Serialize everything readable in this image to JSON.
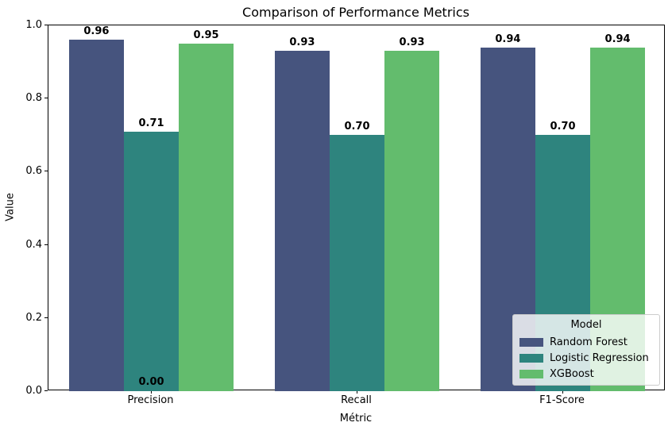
{
  "chart_data": {
    "type": "bar",
    "title": "Comparison of Performance Metrics",
    "xlabel": "Métric",
    "ylabel": "Value",
    "categories": [
      "Precision",
      "Recall",
      "F1-Score"
    ],
    "series": [
      {
        "name": "Random Forest",
        "color": "#46547e",
        "values": [
          0.96,
          0.93,
          0.94
        ]
      },
      {
        "name": "Logistic Regression",
        "color": "#2e847e",
        "values": [
          0.71,
          0.7,
          0.7
        ]
      },
      {
        "name": "XGBoost",
        "color": "#63bc6d",
        "values": [
          0.95,
          0.93,
          0.94
        ]
      }
    ],
    "extra_annotations": [
      {
        "text": "0.00",
        "category": "Precision",
        "y": 0.0
      }
    ],
    "ylim": [
      0.0,
      1.0
    ],
    "yticks": [
      "0.0",
      "0.2",
      "0.4",
      "0.6",
      "0.8",
      "1.0"
    ],
    "legend": {
      "title": "Model",
      "position": "lower right"
    },
    "grid": false,
    "bar_group_width_fraction": 0.8
  }
}
